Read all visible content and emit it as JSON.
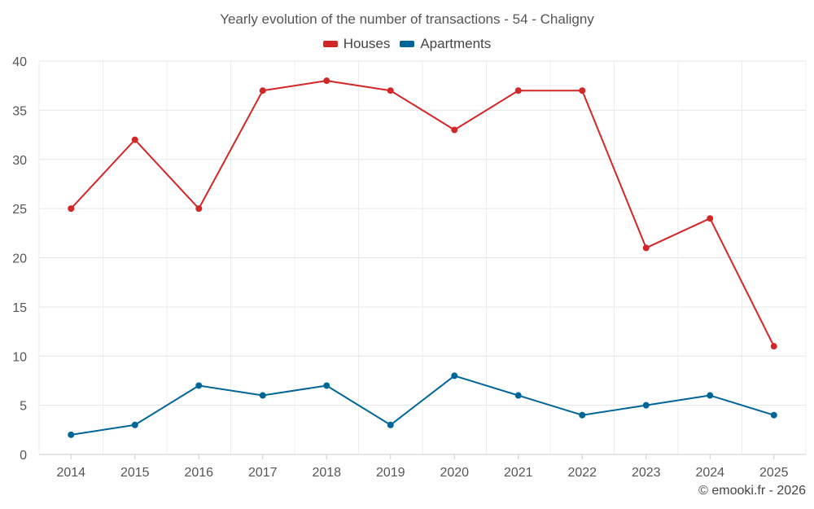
{
  "chart_data": {
    "type": "line",
    "title": "Yearly evolution of the number of transactions - 54 - Chaligny",
    "categories": [
      "2014",
      "2015",
      "2016",
      "2017",
      "2018",
      "2019",
      "2020",
      "2021",
      "2022",
      "2023",
      "2024",
      "2025"
    ],
    "series": [
      {
        "name": "Houses",
        "color": "#d32626",
        "values": [
          25,
          32,
          25,
          37,
          38,
          37,
          33,
          37,
          37,
          21,
          24,
          11
        ]
      },
      {
        "name": "Apartments",
        "color": "#006699",
        "values": [
          2,
          3,
          7,
          6,
          7,
          3,
          8,
          6,
          4,
          5,
          6,
          4
        ]
      }
    ],
    "ylim": [
      0,
      40
    ],
    "yticks": [
      "0",
      "5",
      "10",
      "15",
      "20",
      "25",
      "30",
      "35",
      "40"
    ],
    "grid": true,
    "legend": "top-center"
  },
  "credit": "© emooki.fr - 2026"
}
